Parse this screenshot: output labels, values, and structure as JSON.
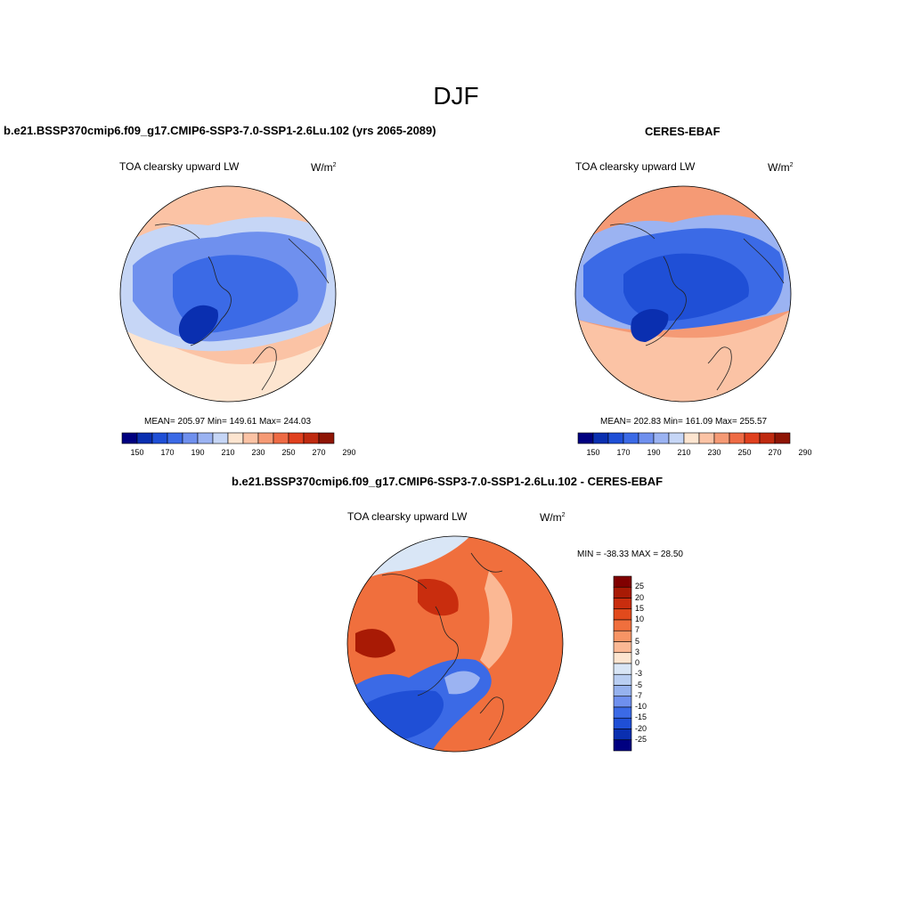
{
  "figure": {
    "season_title": "DJF",
    "variable_label": "TOA clearsky upward LW",
    "units_base": "W/m",
    "units_exp": "2"
  },
  "panel_model": {
    "title": "b.e21.BSSP370cmip6.f09_g17.CMIP6-SSP3-7.0-SSP1-2.6Lu.102 (yrs 2065-2089)",
    "stats": "MEAN= 205.97  Min= 149.61  Max= 244.03",
    "mean": 205.97,
    "min": 149.61,
    "max": 244.03
  },
  "panel_obs": {
    "title": "CERES-EBAF",
    "stats": "MEAN= 202.83  Min= 161.09  Max= 255.57",
    "mean": 202.83,
    "min": 161.09,
    "max": 255.57
  },
  "panel_diff": {
    "title": "b.e21.BSSP370cmip6.f09_g17.CMIP6-SSP3-7.0-SSP1-2.6Lu.102 - CERES-EBAF",
    "minmax": "MIN = -38.33 MAX =  28.50",
    "min": -38.33,
    "max": 28.5
  },
  "colorbar_abs": {
    "labels": [
      "150",
      "170",
      "190",
      "210",
      "230",
      "250",
      "270",
      "290"
    ],
    "colors": [
      "#000080",
      "#0a2fb0",
      "#1f4fd6",
      "#3b6ae6",
      "#6f90ee",
      "#9bb3f2",
      "#c6d6f6",
      "#fde5d0",
      "#fbc3a5",
      "#f59a75",
      "#ee6b45",
      "#e0401e",
      "#bf2a10",
      "#8f1505"
    ]
  },
  "colorbar_diff": {
    "labels": [
      "25",
      "20",
      "15",
      "10",
      "7",
      "5",
      "3",
      "0",
      "-3",
      "-5",
      "-7",
      "-10",
      "-15",
      "-20",
      "-25"
    ],
    "colors": [
      "#800000",
      "#a81a05",
      "#c92d0e",
      "#e24a1c",
      "#f06f3d",
      "#f79465",
      "#fbb894",
      "#fde5d0",
      "#d9e6f6",
      "#b9cef2",
      "#96b2ee",
      "#6f90ee",
      "#3b6ae6",
      "#1f4fd6",
      "#0a2fb0",
      "#000080"
    ]
  }
}
